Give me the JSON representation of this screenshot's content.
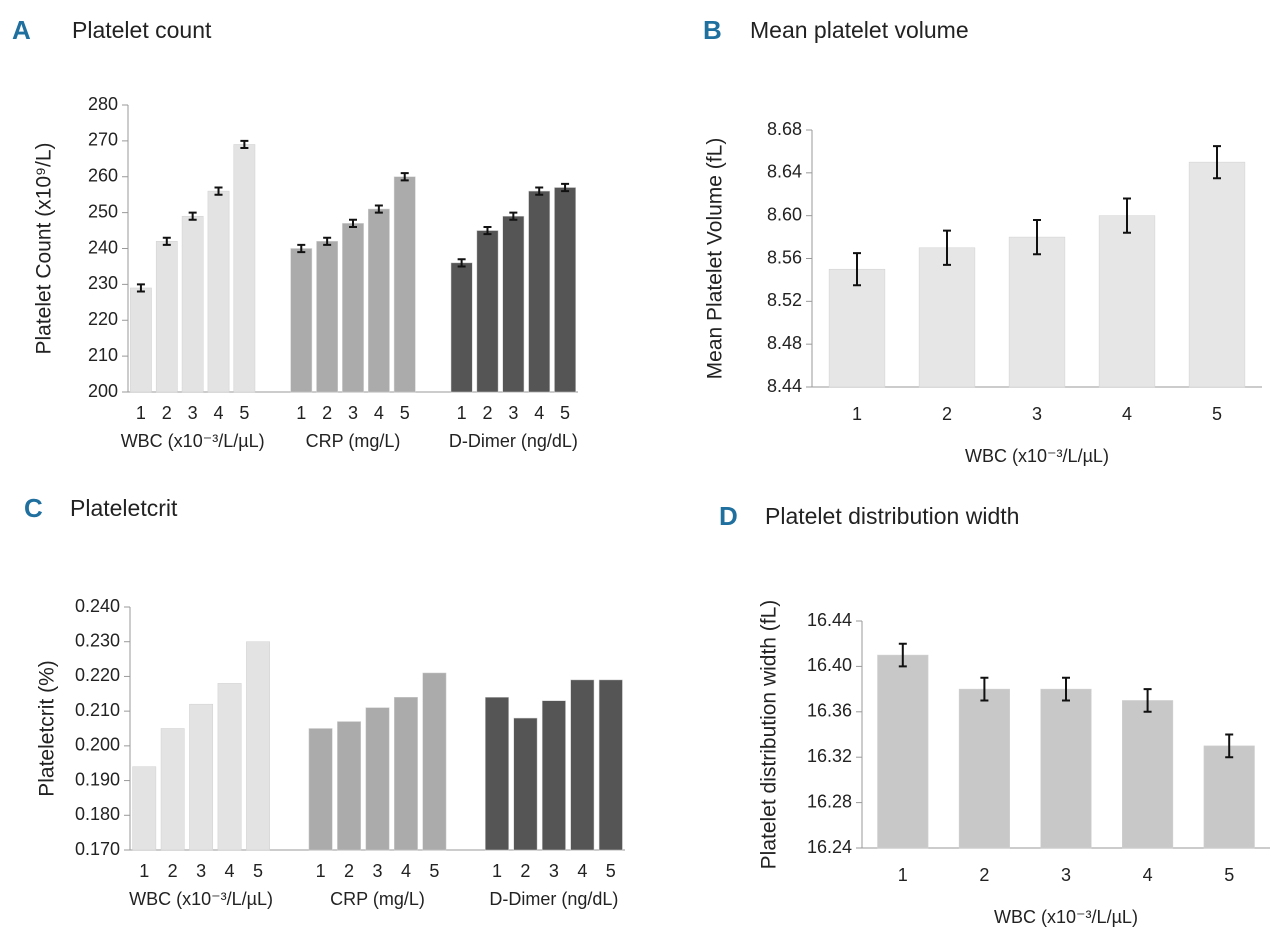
{
  "chart_data": [
    {
      "type": "bar",
      "panel": "A",
      "title": "Platelet count",
      "y_label": "Platelet Count (x10⁹/L)",
      "categories": [
        "1",
        "2",
        "3",
        "4",
        "5"
      ],
      "series": [
        {
          "name": "WBC (x10⁻³/L/µL)",
          "color": "#e3e3e3",
          "values": [
            229,
            242,
            249,
            256,
            269
          ],
          "errors": [
            1,
            1,
            1,
            1,
            1
          ]
        },
        {
          "name": "CRP (mg/L)",
          "color": "#ababab",
          "values": [
            240,
            242,
            247,
            251,
            260
          ],
          "errors": [
            1,
            1,
            1,
            1,
            1
          ]
        },
        {
          "name": "D-Dimer (ng/dL)",
          "color": "#555555",
          "values": [
            236,
            245,
            249,
            256,
            257
          ],
          "errors": [
            1,
            1,
            1,
            1,
            1
          ]
        }
      ],
      "ylim": [
        200,
        280
      ],
      "yticks": [
        200,
        210,
        220,
        230,
        240,
        250,
        260,
        270,
        280
      ]
    },
    {
      "type": "bar",
      "panel": "B",
      "title": "Mean platelet volume",
      "y_label": "Mean Platelet Volume (fL)",
      "x_label": "WBC (x10⁻³/L/µL)",
      "categories": [
        "1",
        "2",
        "3",
        "4",
        "5"
      ],
      "color": "#e6e6e6",
      "values": [
        8.55,
        8.57,
        8.58,
        8.6,
        8.65
      ],
      "errors": [
        0.015,
        0.016,
        0.016,
        0.016,
        0.015
      ],
      "ylim": [
        8.44,
        8.68
      ],
      "yticks": [
        8.44,
        8.48,
        8.52,
        8.56,
        {
          "value": 8.6,
          "label": "8.60"
        },
        8.64,
        8.68
      ]
    },
    {
      "type": "bar",
      "panel": "C",
      "title": "Plateletcrit",
      "y_label": "Plateletcrit (%)",
      "categories": [
        "1",
        "2",
        "3",
        "4",
        "5"
      ],
      "series": [
        {
          "name": "WBC (x10⁻³/L/µL)",
          "color": "#e3e3e3",
          "values": [
            0.194,
            0.205,
            0.212,
            0.218,
            0.23
          ]
        },
        {
          "name": "CRP (mg/L)",
          "color": "#ababab",
          "values": [
            0.205,
            0.207,
            0.211,
            0.214,
            0.221
          ]
        },
        {
          "name": "D-Dimer (ng/dL)",
          "color": "#555555",
          "values": [
            0.214,
            0.208,
            0.213,
            0.219,
            0.219
          ]
        }
      ],
      "ylim": [
        0.17,
        0.24
      ],
      "yticks": [
        {
          "value": 0.17,
          "label": "0.170"
        },
        {
          "value": 0.18,
          "label": "0.180"
        },
        {
          "value": 0.19,
          "label": "0.190"
        },
        {
          "value": 0.2,
          "label": "0.200"
        },
        {
          "value": 0.21,
          "label": "0.210"
        },
        {
          "value": 0.22,
          "label": "0.220"
        },
        {
          "value": 0.23,
          "label": "0.230"
        },
        {
          "value": 0.24,
          "label": "0.240"
        }
      ]
    },
    {
      "type": "bar",
      "panel": "D",
      "title": "Platelet distribution width",
      "y_label": "Platelet distribution width (fL)",
      "x_label": "WBC (x10⁻³/L/µL)",
      "categories": [
        "1",
        "2",
        "3",
        "4",
        "5"
      ],
      "color": "#c8c8c8",
      "values": [
        16.41,
        16.38,
        16.38,
        16.37,
        16.33
      ],
      "errors": [
        0.01,
        0.01,
        0.01,
        0.01,
        0.01
      ],
      "ylim": [
        16.24,
        16.44
      ],
      "yticks": [
        16.24,
        16.28,
        16.32,
        16.36,
        {
          "value": 16.4,
          "label": "16.40"
        },
        16.44
      ]
    }
  ]
}
